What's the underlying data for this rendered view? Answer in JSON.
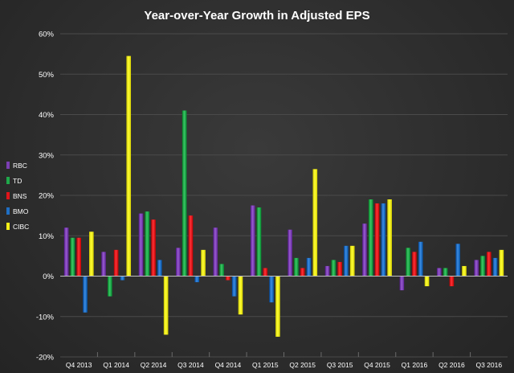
{
  "chart_data": {
    "type": "bar",
    "title": "Year-over-Year Growth in Adjusted EPS",
    "xlabel": "",
    "ylabel": "",
    "ylim": [
      -20,
      60
    ],
    "yticks": [
      "-20%",
      "-10%",
      "0%",
      "10%",
      "20%",
      "30%",
      "40%",
      "50%",
      "60%"
    ],
    "grid": true,
    "legend_position": "left",
    "categories": [
      "Q4 2013",
      "Q1 2014",
      "Q2 2014",
      "Q3 2014",
      "Q4 2014",
      "Q1 2015",
      "Q2 2015",
      "Q3 2015",
      "Q4 2015",
      "Q1 2016",
      "Q2 2016",
      "Q3 2016"
    ],
    "series": [
      {
        "name": "RBC",
        "color": "#7b3fb3",
        "values": [
          12,
          6,
          15.5,
          7,
          12,
          17.5,
          11.5,
          2.5,
          13,
          -3.5,
          2,
          4
        ]
      },
      {
        "name": "TD",
        "color": "#1fa84a",
        "values": [
          9.5,
          -5,
          16,
          41,
          3,
          17,
          4.5,
          4,
          19,
          7,
          2,
          5
        ]
      },
      {
        "name": "BNS",
        "color": "#e0141a",
        "values": [
          9.5,
          6.5,
          14,
          15,
          -1,
          2,
          2,
          3.5,
          18,
          6,
          -2.5,
          6
        ]
      },
      {
        "name": "BMO",
        "color": "#1f6fc4",
        "values": [
          -9,
          -1,
          4,
          -1.5,
          -5,
          -6.5,
          4.5,
          7.5,
          18,
          8.5,
          8,
          4.5
        ]
      },
      {
        "name": "CIBC",
        "color": "#f4ef17",
        "values": [
          11,
          54.5,
          -14.5,
          6.5,
          -9.5,
          -15,
          26.5,
          7.5,
          19,
          -2.5,
          2.5,
          6.5
        ]
      }
    ]
  }
}
